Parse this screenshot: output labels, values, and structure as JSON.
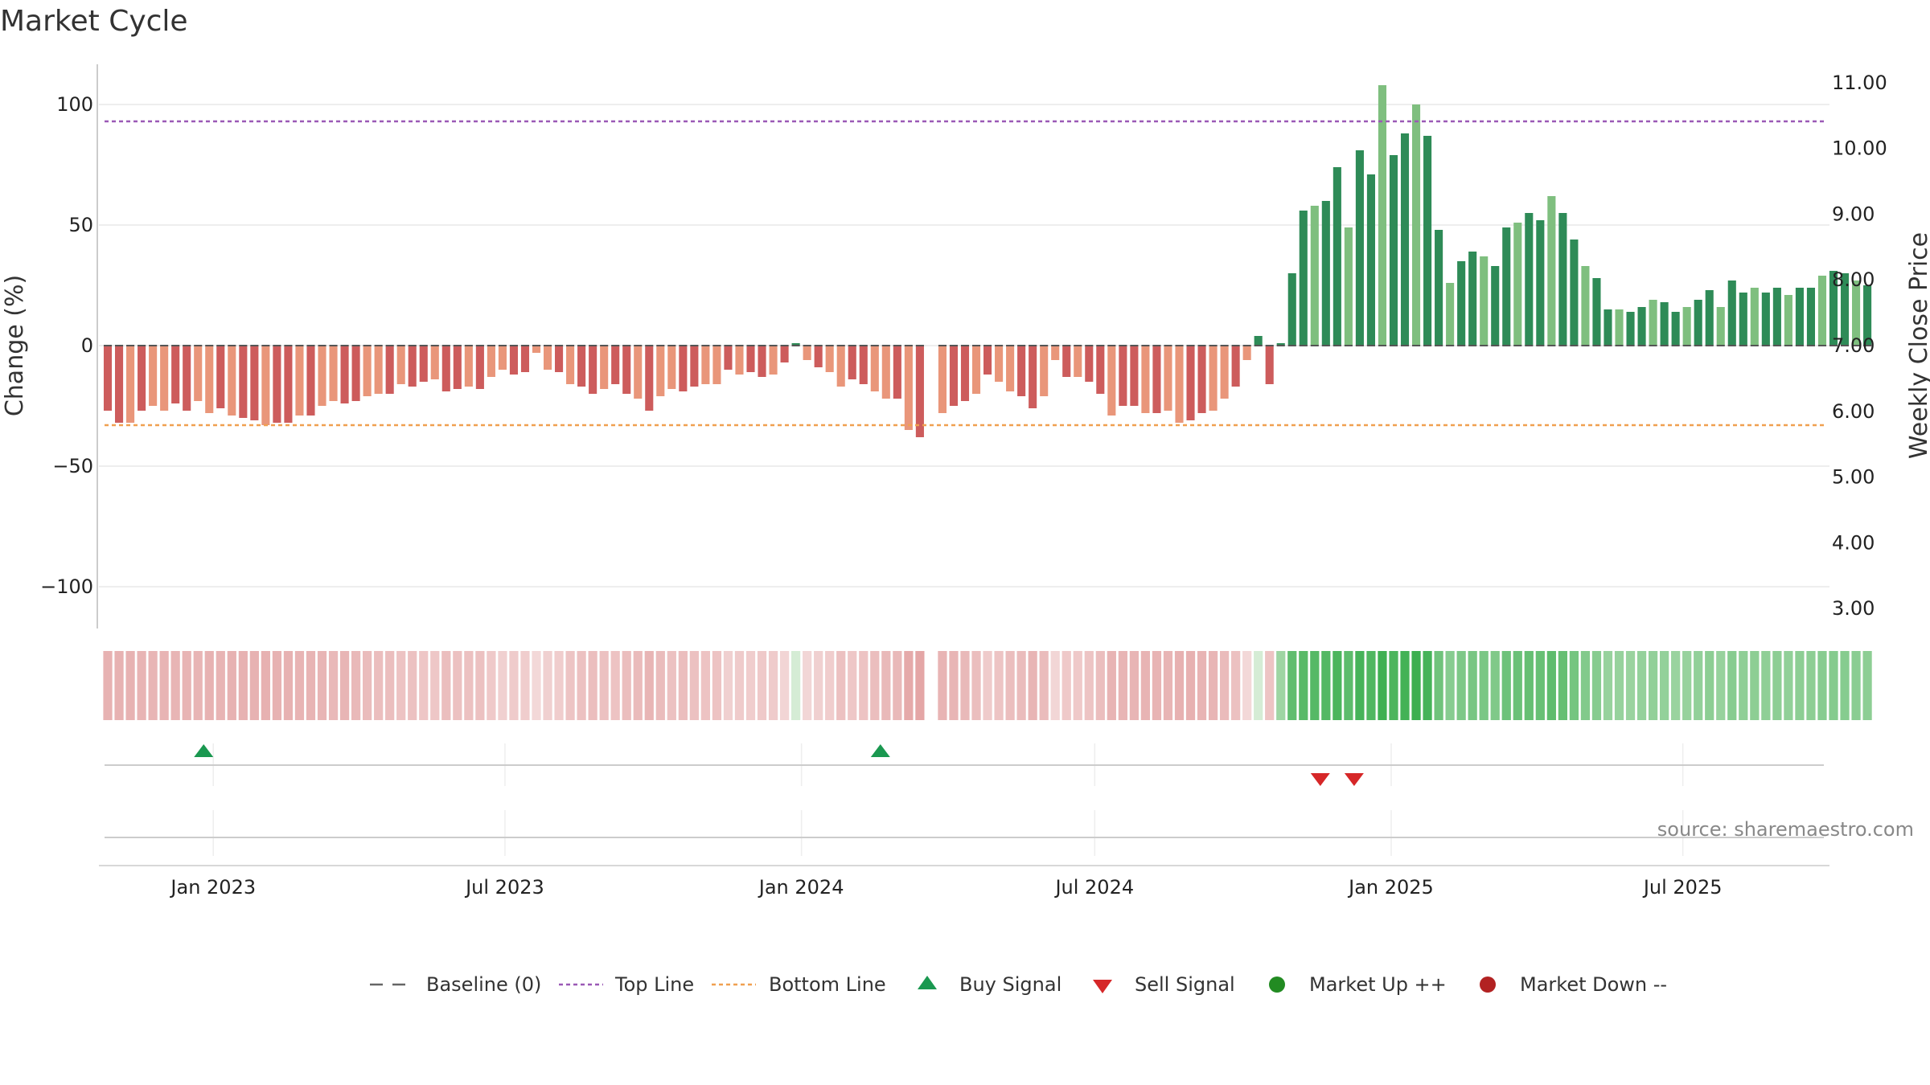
{
  "chart_data": {
    "type": "bar",
    "title": "Market Cycle",
    "ylabel": "Change (%)",
    "y2label": "Weekly Close Price",
    "ylim": [
      -118,
      118
    ],
    "y2lim": [
      2.75,
      11.3
    ],
    "yticks": [
      100,
      50,
      0,
      -50,
      -100
    ],
    "ytick_labels": [
      "100",
      "50",
      "0",
      "−50",
      "−100"
    ],
    "y2ticks": [
      11,
      10,
      9,
      8,
      7,
      6,
      5,
      4,
      3
    ],
    "y2tick_labels": [
      "11.00",
      "10.00",
      "9.00",
      "8.00",
      "7.00",
      "6.00",
      "5.00",
      "4.00",
      "3.00"
    ],
    "xlim": [
      "2022-10-23",
      "2025-09-30"
    ],
    "xticks": [
      "2023-01-01",
      "2023-07-01",
      "2024-01-01",
      "2024-07-01",
      "2025-01-01",
      "2025-07-01"
    ],
    "xtick_labels": [
      "Jan 2023",
      "Jul 2023",
      "Jan 2024",
      "Jul 2024",
      "Jan 2025",
      "Jul 2025"
    ],
    "top_line": 93,
    "bottom_line": -33,
    "first_week": "2022-10-24",
    "values": [
      -27,
      -32,
      -32,
      -27,
      -25,
      -27,
      -24,
      -27,
      -23,
      -28,
      -26,
      -29,
      -30,
      -31,
      -33,
      -32,
      -32,
      -29,
      -29,
      -25,
      -23,
      -24,
      -23,
      -21,
      -20,
      -20,
      -16,
      -17,
      -15,
      -14,
      -19,
      -18,
      -17,
      -18,
      -13,
      -10,
      -12,
      -11,
      -3,
      -10,
      -11,
      -16,
      -17,
      -20,
      -18,
      -16,
      -20,
      -22,
      -27,
      -21,
      -18,
      -19,
      -17,
      -16,
      -16,
      -10,
      -12,
      -11,
      -13,
      -12,
      -7,
      1,
      -6,
      -9,
      -11,
      -17,
      -14,
      -16,
      -19,
      -22,
      -22,
      -35,
      -38,
      null,
      -28,
      -25,
      -23,
      -20,
      -12,
      -15,
      -19,
      -21,
      -26,
      -21,
      -6,
      -13,
      -13,
      -15,
      -20,
      -29,
      -25,
      -25,
      -28,
      -28,
      -27,
      -32,
      -31,
      -28,
      -27,
      -22,
      -17,
      -6,
      4,
      -16,
      1,
      30,
      56,
      58,
      60,
      74,
      49,
      81,
      71,
      108,
      79,
      88,
      100,
      87,
      48,
      26,
      35,
      39,
      37,
      33,
      49,
      51,
      55,
      52,
      62,
      55,
      44,
      33,
      28,
      15,
      15,
      14,
      16,
      19,
      18,
      14,
      16,
      19,
      23,
      16,
      27,
      22,
      24,
      22,
      24,
      21,
      24,
      24,
      29,
      31,
      30,
      27,
      25
    ],
    "strength_band": [
      0.72,
      0.72,
      0.72,
      0.7,
      0.66,
      0.7,
      0.66,
      0.7,
      0.66,
      0.72,
      0.7,
      0.72,
      0.72,
      0.72,
      0.74,
      0.72,
      0.72,
      0.7,
      0.7,
      0.66,
      0.62,
      0.66,
      0.62,
      0.58,
      0.55,
      0.55,
      0.48,
      0.5,
      0.44,
      0.42,
      0.55,
      0.52,
      0.5,
      0.52,
      0.4,
      0.32,
      0.38,
      0.35,
      0.2,
      0.32,
      0.35,
      0.46,
      0.5,
      0.55,
      0.52,
      0.48,
      0.55,
      0.6,
      0.66,
      0.58,
      0.52,
      0.55,
      0.5,
      0.48,
      0.48,
      0.32,
      0.38,
      0.35,
      0.4,
      0.38,
      0.25,
      0.25,
      0.22,
      0.3,
      0.35,
      0.5,
      0.42,
      0.48,
      0.55,
      0.62,
      0.62,
      0.82,
      0.88,
      null,
      0.68,
      0.66,
      0.62,
      0.55,
      0.38,
      0.46,
      0.55,
      0.58,
      0.66,
      0.58,
      0.22,
      0.4,
      0.4,
      0.46,
      0.55,
      0.7,
      0.66,
      0.66,
      0.7,
      0.7,
      0.66,
      0.74,
      0.74,
      0.7,
      0.66,
      0.6,
      0.5,
      0.2,
      0.25,
      0.46,
      0.25,
      0.72,
      0.78,
      0.8,
      0.82,
      0.88,
      0.75,
      0.92,
      0.85,
      0.98,
      0.88,
      0.95,
      1.0,
      0.92,
      0.6,
      0.42,
      0.5,
      0.54,
      0.52,
      0.48,
      0.62,
      0.64,
      0.68,
      0.66,
      0.74,
      0.68,
      0.56,
      0.46,
      0.42,
      0.3,
      0.3,
      0.28,
      0.32,
      0.34,
      0.33,
      0.28,
      0.3,
      0.34,
      0.38,
      0.3,
      0.42,
      0.36,
      0.38,
      0.36,
      0.38,
      0.35,
      0.38,
      0.38,
      0.42,
      0.44,
      0.43,
      0.4,
      0.38
    ],
    "buy_signals": [
      "2022-12-26",
      "2024-02-19"
    ],
    "sell_signals": [
      "2024-11-18",
      "2024-12-09"
    ],
    "colors": {
      "up_dark": "#2e8b57",
      "up_light": "#7fbf7f",
      "down_dark": "#cd5c5c",
      "down_light": "#e9967a",
      "top_line": "#9b59b6",
      "bottom_line": "#f0a050",
      "buy": "#1a9850",
      "sell": "#d62728",
      "market_up": "#228b22",
      "market_down": "#b22222"
    },
    "legend_position": "bottom-center",
    "grid": true
  },
  "legend": {
    "baseline": "Baseline (0)",
    "top_line": "Top Line",
    "bottom_line": "Bottom Line",
    "buy": "Buy Signal",
    "sell": "Sell Signal",
    "market_up": "Market Up ++",
    "market_down": "Market Down --"
  },
  "source": "source: sharemaestro.com"
}
